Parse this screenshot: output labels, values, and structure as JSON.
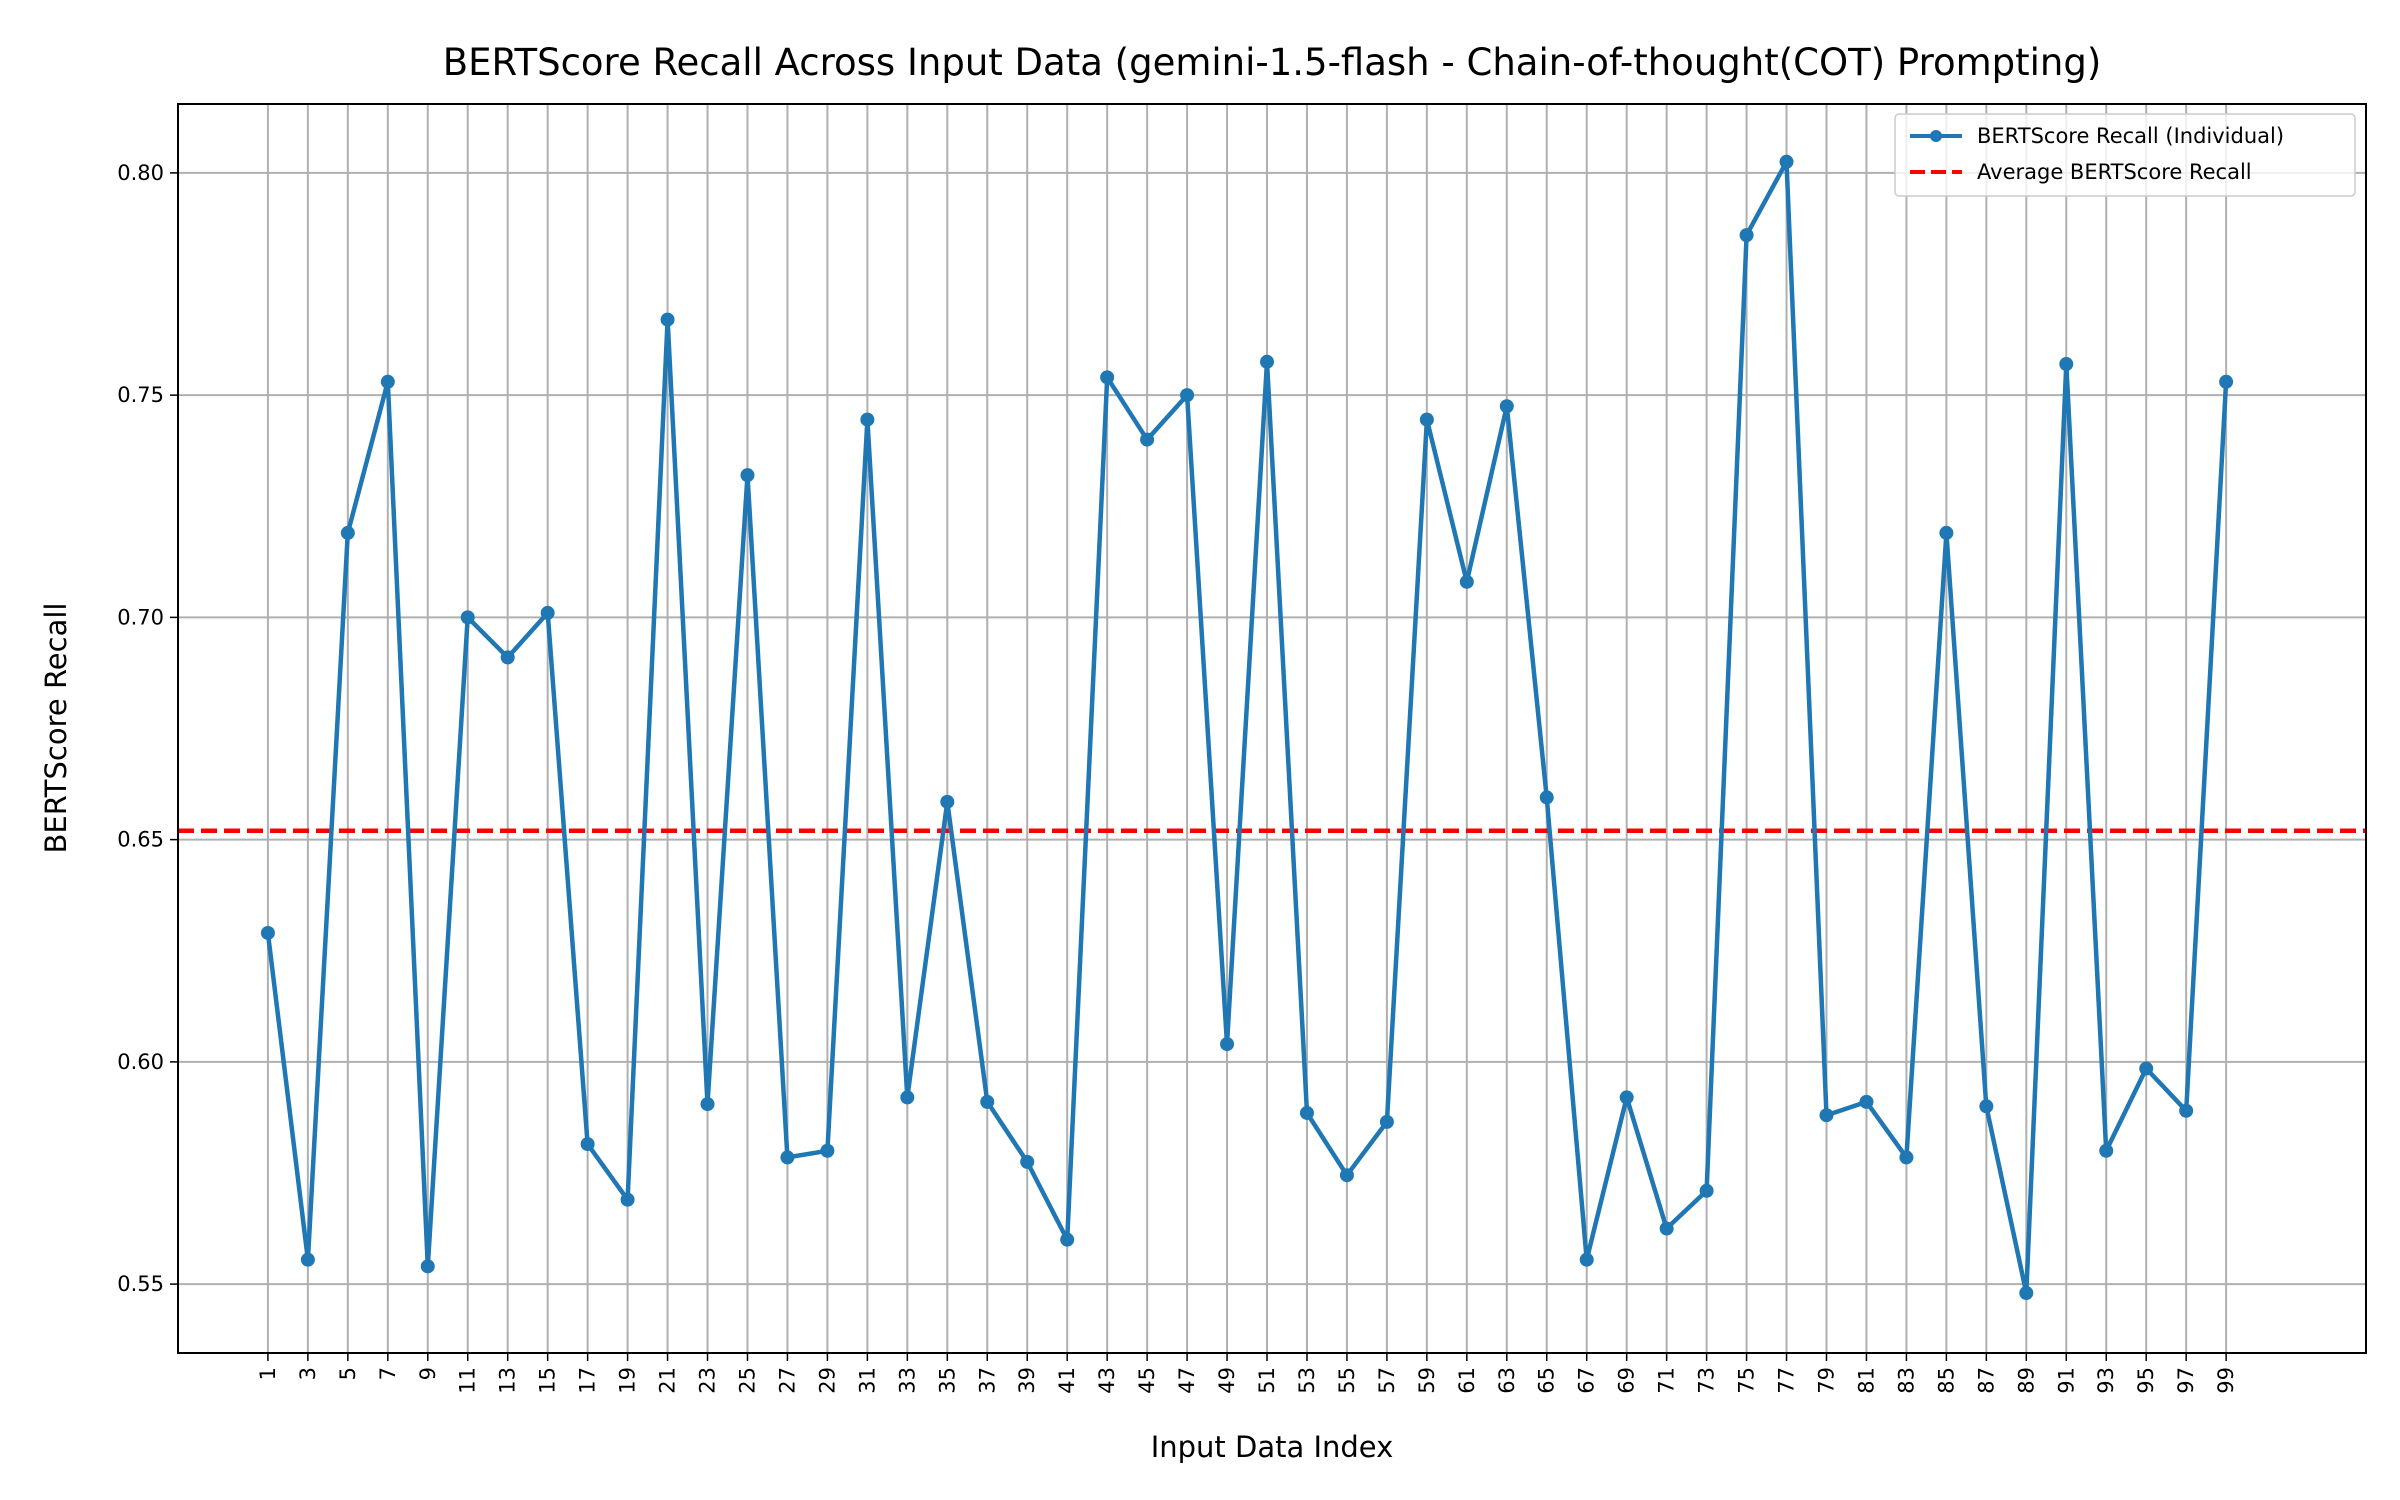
{
  "chart_data": {
    "type": "line",
    "title": "BERTScore Recall Across Input Data (gemini-1.5-flash - Chain-of-thought(COT) Prompting)",
    "xlabel": "Input Data Index",
    "ylabel": "BERTScore Recall",
    "x": [
      1,
      3,
      5,
      7,
      9,
      11,
      13,
      15,
      17,
      19,
      21,
      23,
      25,
      27,
      29,
      31,
      33,
      35,
      37,
      39,
      41,
      43,
      45,
      47,
      49,
      51,
      53,
      55,
      57,
      59,
      61,
      63,
      65,
      67,
      69,
      71,
      73,
      75,
      77,
      79,
      81,
      83,
      85,
      87,
      89,
      91,
      93,
      95,
      97,
      99
    ],
    "xticks": [
      "1",
      "3",
      "5",
      "7",
      "9",
      "11",
      "13",
      "15",
      "17",
      "19",
      "21",
      "23",
      "25",
      "27",
      "29",
      "31",
      "33",
      "35",
      "37",
      "39",
      "41",
      "43",
      "45",
      "47",
      "49",
      "51",
      "53",
      "55",
      "57",
      "59",
      "61",
      "63",
      "65",
      "67",
      "69",
      "71",
      "73",
      "75",
      "77",
      "79",
      "81",
      "83",
      "85",
      "87",
      "89",
      "91",
      "93",
      "95",
      "97",
      "99"
    ],
    "xlim": [
      -3.5,
      106
    ],
    "ylim": [
      0.5345,
      0.8155
    ],
    "yticks": [
      0.55,
      0.6,
      0.65,
      0.7,
      0.75,
      0.8
    ],
    "ytick_labels": [
      "0.55",
      "0.60",
      "0.65",
      "0.70",
      "0.75",
      "0.80"
    ],
    "grid": true,
    "legend_position": "top-right",
    "series": [
      {
        "name": "BERTScore Recall (Individual)",
        "style": "line-with-markers",
        "color": "#1f77b4",
        "values": [
          0.629,
          0.5555,
          0.719,
          0.753,
          0.554,
          0.7,
          0.691,
          0.701,
          0.5815,
          0.569,
          0.767,
          0.5905,
          0.732,
          0.5785,
          0.58,
          0.7445,
          0.592,
          0.6585,
          0.591,
          0.5775,
          0.56,
          0.754,
          0.74,
          0.75,
          0.604,
          0.7575,
          0.5885,
          0.5745,
          0.5865,
          0.7445,
          0.708,
          0.7475,
          0.6595,
          0.5555,
          0.592,
          0.5625,
          0.571,
          0.786,
          0.8025,
          0.588,
          0.591,
          0.5785,
          0.719,
          0.59,
          0.548,
          0.757,
          0.58,
          0.5985,
          0.589,
          0.753
        ]
      },
      {
        "name": "Average BERTScore Recall",
        "style": "dashed-horizontal",
        "color": "#ff0000",
        "value": 0.652
      }
    ]
  }
}
